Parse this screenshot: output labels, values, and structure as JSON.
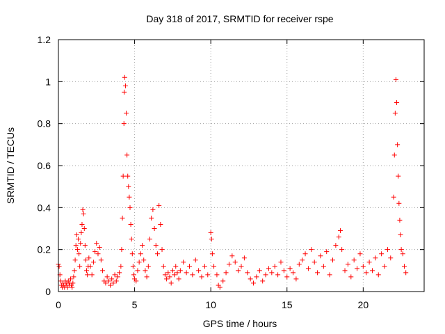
{
  "chart_data": {
    "type": "scatter",
    "title": "Day 318 of 2017, SRMTID for receiver rspe",
    "xlabel": "GPS time / hours",
    "ylabel": "SRMTID / TECUs",
    "xlim": [
      0,
      24
    ],
    "ylim": [
      0,
      1.2
    ],
    "x_ticks": [
      0,
      5,
      10,
      15,
      20
    ],
    "x_tick_labels": [
      "0",
      "5",
      "10",
      "15",
      "20"
    ],
    "y_ticks": [
      0,
      0.2,
      0.4,
      0.6,
      0.8,
      1.0,
      1.2
    ],
    "y_tick_labels": [
      "0",
      "0.2",
      "0.4",
      "0.6",
      "0.8",
      "1",
      "1.2"
    ],
    "grid": true,
    "marker": "+",
    "color": "#ff0000",
    "series": [
      {
        "name": "SRMTID",
        "points": [
          [
            0.0,
            0.13
          ],
          [
            0.05,
            0.12
          ],
          [
            0.1,
            0.08
          ],
          [
            0.15,
            0.05
          ],
          [
            0.2,
            0.03
          ],
          [
            0.25,
            0.02
          ],
          [
            0.3,
            0.04
          ],
          [
            0.35,
            0.03
          ],
          [
            0.4,
            0.02
          ],
          [
            0.45,
            0.05
          ],
          [
            0.5,
            0.03
          ],
          [
            0.55,
            0.04
          ],
          [
            0.6,
            0.02
          ],
          [
            0.65,
            0.05
          ],
          [
            0.7,
            0.03
          ],
          [
            0.75,
            0.04
          ],
          [
            0.8,
            0.06
          ],
          [
            0.85,
            0.03
          ],
          [
            0.9,
            0.02
          ],
          [
            0.95,
            0.04
          ],
          [
            1.0,
            0.07
          ],
          [
            1.05,
            0.1
          ],
          [
            1.1,
            0.15
          ],
          [
            1.15,
            0.22
          ],
          [
            1.2,
            0.27
          ],
          [
            1.25,
            0.2
          ],
          [
            1.3,
            0.25
          ],
          [
            1.35,
            0.18
          ],
          [
            1.4,
            0.12
          ],
          [
            1.45,
            0.23
          ],
          [
            1.5,
            0.28
          ],
          [
            1.55,
            0.32
          ],
          [
            1.6,
            0.39
          ],
          [
            1.65,
            0.37
          ],
          [
            1.7,
            0.3
          ],
          [
            1.75,
            0.22
          ],
          [
            1.8,
            0.15
          ],
          [
            1.85,
            0.1
          ],
          [
            1.9,
            0.08
          ],
          [
            1.95,
            0.12
          ],
          [
            2.0,
            0.16
          ],
          [
            2.1,
            0.12
          ],
          [
            2.2,
            0.08
          ],
          [
            2.3,
            0.14
          ],
          [
            2.4,
            0.19
          ],
          [
            2.5,
            0.23
          ],
          [
            2.6,
            0.18
          ],
          [
            2.7,
            0.21
          ],
          [
            2.8,
            0.15
          ],
          [
            2.9,
            0.1
          ],
          [
            3.0,
            0.05
          ],
          [
            3.1,
            0.04
          ],
          [
            3.2,
            0.07
          ],
          [
            3.3,
            0.05
          ],
          [
            3.4,
            0.03
          ],
          [
            3.5,
            0.06
          ],
          [
            3.6,
            0.04
          ],
          [
            3.7,
            0.08
          ],
          [
            3.8,
            0.05
          ],
          [
            3.9,
            0.07
          ],
          [
            4.0,
            0.09
          ],
          [
            4.1,
            0.12
          ],
          [
            4.15,
            0.2
          ],
          [
            4.2,
            0.35
          ],
          [
            4.25,
            0.55
          ],
          [
            4.3,
            0.8
          ],
          [
            4.32,
            0.95
          ],
          [
            4.35,
            1.02
          ],
          [
            4.4,
            0.98
          ],
          [
            4.45,
            0.85
          ],
          [
            4.5,
            0.65
          ],
          [
            4.55,
            0.55
          ],
          [
            4.6,
            0.5
          ],
          [
            4.65,
            0.45
          ],
          [
            4.7,
            0.4
          ],
          [
            4.75,
            0.32
          ],
          [
            4.8,
            0.25
          ],
          [
            4.85,
            0.18
          ],
          [
            4.9,
            0.12
          ],
          [
            4.95,
            0.08
          ],
          [
            5.0,
            0.06
          ],
          [
            5.1,
            0.05
          ],
          [
            5.2,
            0.1
          ],
          [
            5.3,
            0.14
          ],
          [
            5.4,
            0.18
          ],
          [
            5.5,
            0.22
          ],
          [
            5.6,
            0.15
          ],
          [
            5.7,
            0.1
          ],
          [
            5.8,
            0.07
          ],
          [
            5.9,
            0.12
          ],
          [
            6.0,
            0.25
          ],
          [
            6.1,
            0.35
          ],
          [
            6.2,
            0.39
          ],
          [
            6.3,
            0.3
          ],
          [
            6.4,
            0.22
          ],
          [
            6.5,
            0.18
          ],
          [
            6.6,
            0.41
          ],
          [
            6.7,
            0.32
          ],
          [
            6.8,
            0.2
          ],
          [
            6.9,
            0.12
          ],
          [
            7.0,
            0.08
          ],
          [
            7.1,
            0.06
          ],
          [
            7.2,
            0.09
          ],
          [
            7.3,
            0.07
          ],
          [
            7.4,
            0.04
          ],
          [
            7.5,
            0.1
          ],
          [
            7.6,
            0.08
          ],
          [
            7.7,
            0.12
          ],
          [
            7.8,
            0.09
          ],
          [
            7.9,
            0.06
          ],
          [
            8.0,
            0.1
          ],
          [
            8.2,
            0.14
          ],
          [
            8.4,
            0.09
          ],
          [
            8.6,
            0.12
          ],
          [
            8.8,
            0.08
          ],
          [
            9.0,
            0.15
          ],
          [
            9.2,
            0.1
          ],
          [
            9.4,
            0.07
          ],
          [
            9.6,
            0.12
          ],
          [
            9.8,
            0.08
          ],
          [
            10.0,
            0.28
          ],
          [
            10.05,
            0.25
          ],
          [
            10.1,
            0.18
          ],
          [
            10.2,
            0.12
          ],
          [
            10.4,
            0.08
          ],
          [
            10.5,
            0.03
          ],
          [
            10.6,
            0.02
          ],
          [
            10.8,
            0.05
          ],
          [
            11.0,
            0.09
          ],
          [
            11.2,
            0.13
          ],
          [
            11.4,
            0.17
          ],
          [
            11.6,
            0.14
          ],
          [
            11.8,
            0.1
          ],
          [
            12.0,
            0.12
          ],
          [
            12.2,
            0.16
          ],
          [
            12.4,
            0.09
          ],
          [
            12.6,
            0.06
          ],
          [
            12.8,
            0.04
          ],
          [
            13.0,
            0.07
          ],
          [
            13.2,
            0.1
          ],
          [
            13.4,
            0.05
          ],
          [
            13.6,
            0.08
          ],
          [
            13.8,
            0.11
          ],
          [
            14.0,
            0.09
          ],
          [
            14.2,
            0.12
          ],
          [
            14.4,
            0.08
          ],
          [
            14.6,
            0.14
          ],
          [
            14.8,
            0.1
          ],
          [
            15.0,
            0.07
          ],
          [
            15.2,
            0.11
          ],
          [
            15.4,
            0.09
          ],
          [
            15.6,
            0.06
          ],
          [
            15.8,
            0.13
          ],
          [
            16.0,
            0.15
          ],
          [
            16.2,
            0.18
          ],
          [
            16.4,
            0.11
          ],
          [
            16.6,
            0.2
          ],
          [
            16.8,
            0.14
          ],
          [
            17.0,
            0.09
          ],
          [
            17.2,
            0.17
          ],
          [
            17.4,
            0.12
          ],
          [
            17.6,
            0.19
          ],
          [
            17.8,
            0.08
          ],
          [
            18.0,
            0.15
          ],
          [
            18.2,
            0.22
          ],
          [
            18.4,
            0.26
          ],
          [
            18.5,
            0.29
          ],
          [
            18.6,
            0.2
          ],
          [
            18.8,
            0.1
          ],
          [
            19.0,
            0.13
          ],
          [
            19.2,
            0.07
          ],
          [
            19.4,
            0.15
          ],
          [
            19.6,
            0.11
          ],
          [
            19.8,
            0.18
          ],
          [
            20.0,
            0.12
          ],
          [
            20.2,
            0.09
          ],
          [
            20.4,
            0.14
          ],
          [
            20.6,
            0.1
          ],
          [
            20.8,
            0.16
          ],
          [
            21.0,
            0.08
          ],
          [
            21.2,
            0.18
          ],
          [
            21.4,
            0.12
          ],
          [
            21.6,
            0.2
          ],
          [
            21.8,
            0.16
          ],
          [
            22.0,
            0.45
          ],
          [
            22.05,
            0.65
          ],
          [
            22.1,
            0.85
          ],
          [
            22.15,
            1.01
          ],
          [
            22.2,
            0.9
          ],
          [
            22.25,
            0.7
          ],
          [
            22.3,
            0.55
          ],
          [
            22.35,
            0.42
          ],
          [
            22.4,
            0.34
          ],
          [
            22.45,
            0.27
          ],
          [
            22.5,
            0.2
          ],
          [
            22.6,
            0.18
          ],
          [
            22.7,
            0.12
          ],
          [
            22.8,
            0.09
          ]
        ]
      }
    ]
  }
}
